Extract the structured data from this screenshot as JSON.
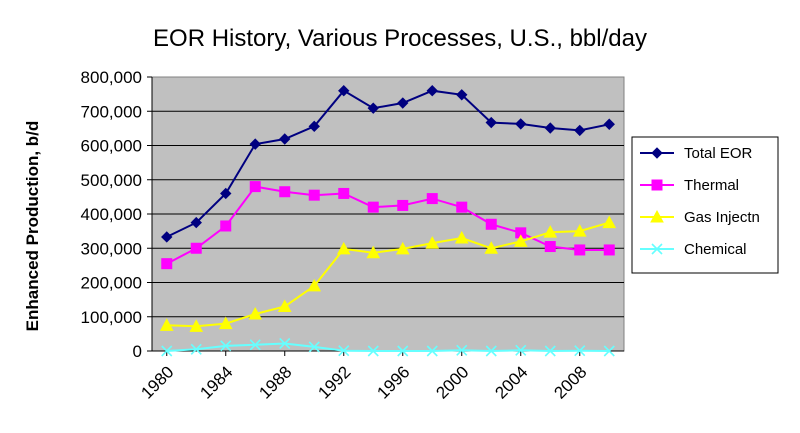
{
  "chart_data": {
    "type": "line",
    "title": "EOR History, Various Processes, U.S., bbl/day",
    "xlabel": "",
    "ylabel": "Enhanced Production, b/d",
    "ylim": [
      0,
      800000
    ],
    "yticks": [
      0,
      100000,
      200000,
      300000,
      400000,
      500000,
      600000,
      700000,
      800000
    ],
    "ytick_labels": [
      "0",
      "100,000",
      "200,000",
      "300,000",
      "400,000",
      "500,000",
      "600,000",
      "700,000",
      "800,000"
    ],
    "xlim": [
      1979,
      2011
    ],
    "xtick_labels": [
      "1980",
      "1984",
      "1988",
      "1992",
      "1996",
      "2000",
      "2004",
      "2008"
    ],
    "grid": "horizontal",
    "legend_position": "right",
    "plot_background": "#c0c0c0",
    "x": [
      1980,
      1982,
      1984,
      1986,
      1988,
      1990,
      1992,
      1994,
      1996,
      1998,
      2000,
      2002,
      2004,
      2006,
      2008,
      2010
    ],
    "series": [
      {
        "name": "Total EOR",
        "color": "#000080",
        "marker": "diamond",
        "values": [
          333000,
          375000,
          460000,
          604000,
          619000,
          656000,
          760000,
          709000,
          724000,
          760000,
          748000,
          667000,
          663000,
          651000,
          644000,
          662000
        ]
      },
      {
        "name": "Thermal",
        "color": "#ff00ff",
        "marker": "square",
        "values": [
          255000,
          300000,
          365000,
          480000,
          465000,
          455000,
          460000,
          420000,
          425000,
          445000,
          420000,
          370000,
          345000,
          305000,
          295000,
          295000
        ]
      },
      {
        "name": "Gas Injectn",
        "color": "#ffff00",
        "marker": "triangle",
        "values": [
          75000,
          72000,
          80000,
          108000,
          130000,
          190000,
          298000,
          287000,
          298000,
          315000,
          330000,
          300000,
          320000,
          347000,
          350000,
          375000
        ]
      },
      {
        "name": "Chemical",
        "color": "#66ffff",
        "marker": "x",
        "values": [
          0,
          5000,
          15000,
          18000,
          22000,
          12000,
          1000,
          0,
          0,
          0,
          2000,
          0,
          2000,
          0,
          1000,
          0
        ]
      }
    ]
  }
}
